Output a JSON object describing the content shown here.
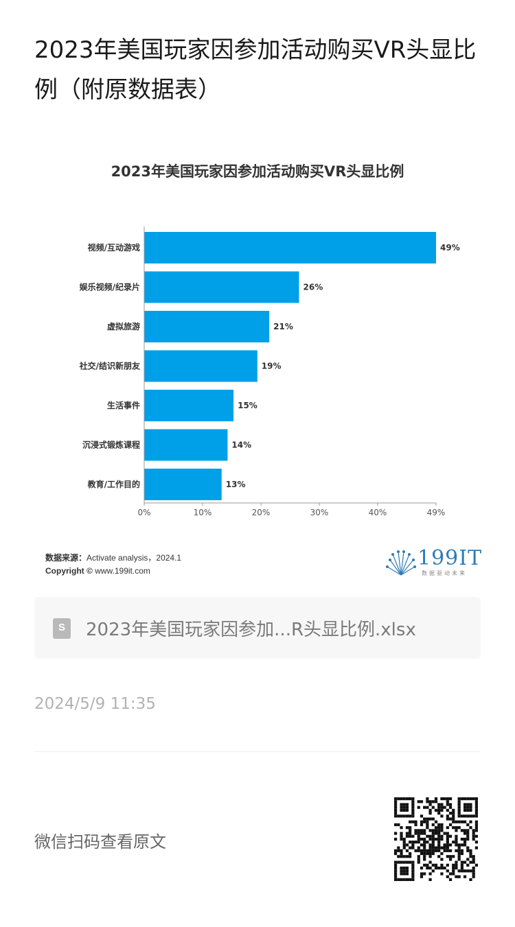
{
  "article": {
    "title": "2023年美国玩家因参加活动购买VR头显比例（附原数据表）"
  },
  "chart_data": {
    "type": "bar",
    "orientation": "horizontal",
    "title": "2023年美国玩家因参加活动购买VR头显比例",
    "categories": [
      "视频/互动游戏",
      "娱乐视频/纪录片",
      "虚拟旅游",
      "社交/结识新朋友",
      "生活事件",
      "沉浸式锻炼课程",
      "教育/工作目的"
    ],
    "values": [
      49,
      26,
      21,
      19,
      15,
      14,
      13
    ],
    "value_labels": [
      "49%",
      "26%",
      "21%",
      "19%",
      "15%",
      "14%",
      "13%"
    ],
    "xticks": [
      "0%",
      "10%",
      "20%",
      "30%",
      "40%",
      "49%"
    ],
    "xlim": [
      0,
      49
    ],
    "bar_color": "#00a0e9",
    "grid": false
  },
  "chart_footer": {
    "source_label": "数据来源：",
    "source_text": "Activate analysis，2024.1",
    "copyright_label": "Copyright ©",
    "copyright_text": "www.199it.com",
    "brand_name": "199IT",
    "brand_slogan": "数据驱动未来"
  },
  "attachment": {
    "icon": "spreadsheet-file-icon",
    "icon_letter": "S",
    "file_name": "2023年美国玩家因参加...R头显比例.xlsx"
  },
  "meta": {
    "timestamp": "2024/5/9 11:35"
  },
  "qr": {
    "prompt": "微信扫码查看原文",
    "icon": "qr-code-icon"
  }
}
